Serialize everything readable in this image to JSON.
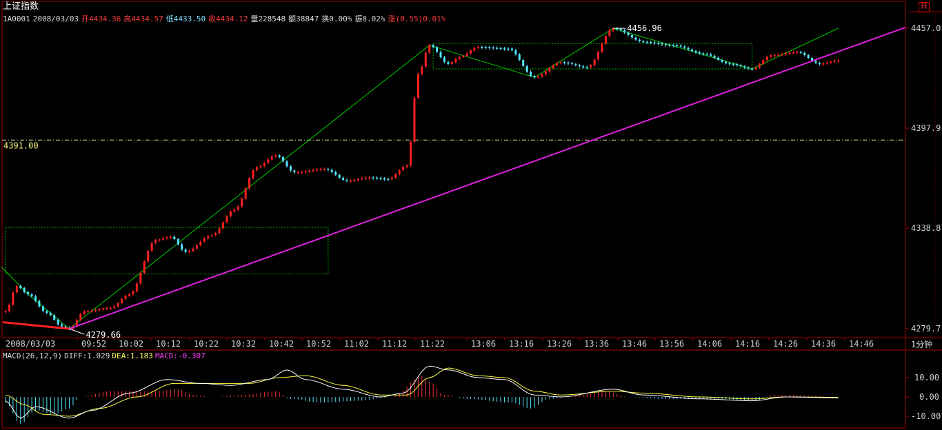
{
  "header": {
    "title": "上证指数",
    "corner_label": "日",
    "code": "1A0001",
    "date": "2008/03/03",
    "open": "开4434.36",
    "high": "高4434.57",
    "low": "低4433.50",
    "close": "收4434.12",
    "volume": "量228548",
    "amount": "额38847",
    "turnover": "换0.00%",
    "amplitude": "振0.02%",
    "change": "涨(0.55)0.01%"
  },
  "price_axis": {
    "labels": [
      "4457.0",
      "4397.9",
      "4338.8",
      "4279.7"
    ],
    "ref_line_label": "4391.00",
    "high_annotation": "4456.96",
    "low_annotation": "4279.66"
  },
  "time_axis": {
    "date_label": "2008/03/03",
    "labels": [
      "09:52",
      "10:02",
      "10:12",
      "10:22",
      "10:32",
      "10:42",
      "10:52",
      "11:02",
      "11:12",
      "11:22",
      "13:06",
      "13:16",
      "13:26",
      "13:36",
      "13:46",
      "13:56",
      "14:06",
      "14:16",
      "14:26",
      "14:36",
      "14:46"
    ],
    "period": "1分钟"
  },
  "macd": {
    "params": "MACD(26,12,9)",
    "diff": "DIFF:1.029",
    "dea": "DEA:1.183",
    "macd": "MACD:-0.307",
    "axis_labels": [
      "10.00",
      "0.00",
      "-10.00"
    ]
  },
  "colors": {
    "up": "#ff2020",
    "down": "#54e6ff",
    "trend": "#e020e0",
    "zigzag": "#00d000",
    "box": "#00c000",
    "diff": "#ffffff",
    "dea": "#ffff40"
  },
  "chart_data": {
    "type": "line",
    "title": "上证指数",
    "ylim": [
      4279.7,
      4457.0
    ],
    "reference_line": 4391.0,
    "price_anchors": [
      {
        "t": 0,
        "v": 4290
      },
      {
        "t": 3,
        "v": 4305
      },
      {
        "t": 6,
        "v": 4300
      },
      {
        "t": 11,
        "v": 4289
      },
      {
        "t": 15,
        "v": 4281
      },
      {
        "t": 17,
        "v": 4279.66
      },
      {
        "t": 21,
        "v": 4290
      },
      {
        "t": 28,
        "v": 4292
      },
      {
        "t": 33,
        "v": 4300
      },
      {
        "t": 40,
        "v": 4332
      },
      {
        "t": 44,
        "v": 4334
      },
      {
        "t": 48,
        "v": 4325
      },
      {
        "t": 55,
        "v": 4335
      },
      {
        "t": 61,
        "v": 4350
      },
      {
        "t": 67,
        "v": 4375
      },
      {
        "t": 72,
        "v": 4382
      },
      {
        "t": 77,
        "v": 4372
      },
      {
        "t": 85,
        "v": 4374
      },
      {
        "t": 91,
        "v": 4367
      },
      {
        "t": 97,
        "v": 4369
      },
      {
        "t": 102,
        "v": 4368
      },
      {
        "t": 107,
        "v": 4376
      },
      {
        "t": 110,
        "v": 4430
      },
      {
        "t": 113,
        "v": 4447
      },
      {
        "t": 118,
        "v": 4436
      },
      {
        "t": 121,
        "v": 4440
      },
      {
        "t": 126,
        "v": 4446
      },
      {
        "t": 134,
        "v": 4445
      },
      {
        "t": 141,
        "v": 4428
      },
      {
        "t": 148,
        "v": 4437
      },
      {
        "t": 155,
        "v": 4434
      },
      {
        "t": 162,
        "v": 4456.96
      },
      {
        "t": 170,
        "v": 4449
      },
      {
        "t": 178,
        "v": 4447
      },
      {
        "t": 186,
        "v": 4442
      },
      {
        "t": 193,
        "v": 4436
      },
      {
        "t": 199,
        "v": 4433
      },
      {
        "t": 204,
        "v": 4441
      },
      {
        "t": 211,
        "v": 4443
      },
      {
        "t": 217,
        "v": 4436
      },
      {
        "t": 222,
        "v": 4438
      }
    ],
    "trendline": [
      {
        "t": 17,
        "v": 4279.66
      },
      {
        "t": 222,
        "v": 4457.5
      }
    ],
    "downtrend_segment": [
      {
        "t": 0,
        "v": 4283.5
      },
      {
        "t": 17,
        "v": 4279.66
      }
    ],
    "zigzag": [
      {
        "t": -1,
        "v": 4316
      },
      {
        "t": 6,
        "v": 4300
      },
      {
        "t": 17,
        "v": 4279.66
      },
      {
        "t": 113,
        "v": 4447
      },
      {
        "t": 141,
        "v": 4428
      },
      {
        "t": 162,
        "v": 4456.96
      },
      {
        "t": 199,
        "v": 4433
      },
      {
        "t": 222,
        "v": 4457
      }
    ],
    "boxes": [
      {
        "t1": 0,
        "t2": 86,
        "v1": 4312,
        "v2": 4339.5
      },
      {
        "t1": 114,
        "t2": 199,
        "v1": 4433,
        "v2": 4448
      }
    ],
    "macd_anchors": {
      "hist": [
        {
          "t": 0,
          "v": -3
        },
        {
          "t": 4,
          "v": -14
        },
        {
          "t": 8,
          "v": -7
        },
        {
          "t": 13,
          "v": -9
        },
        {
          "t": 17,
          "v": -6
        },
        {
          "t": 20,
          "v": 0
        },
        {
          "t": 28,
          "v": 3
        },
        {
          "t": 40,
          "v": 3
        },
        {
          "t": 46,
          "v": 4
        },
        {
          "t": 50,
          "v": 1
        },
        {
          "t": 55,
          "v": 0
        },
        {
          "t": 63,
          "v": 1
        },
        {
          "t": 72,
          "v": 3
        },
        {
          "t": 76,
          "v": -1
        },
        {
          "t": 84,
          "v": -3
        },
        {
          "t": 94,
          "v": -2
        },
        {
          "t": 103,
          "v": 0
        },
        {
          "t": 111,
          "v": 11
        },
        {
          "t": 113,
          "v": 8
        },
        {
          "t": 117,
          "v": 1
        },
        {
          "t": 123,
          "v": -1
        },
        {
          "t": 135,
          "v": -3
        },
        {
          "t": 140,
          "v": -6
        },
        {
          "t": 145,
          "v": -1
        },
        {
          "t": 153,
          "v": 1
        },
        {
          "t": 160,
          "v": 3
        },
        {
          "t": 166,
          "v": 0
        },
        {
          "t": 175,
          "v": -1
        },
        {
          "t": 190,
          "v": -1
        },
        {
          "t": 200,
          "v": -2
        },
        {
          "t": 205,
          "v": 1
        },
        {
          "t": 210,
          "v": 1
        },
        {
          "t": 222,
          "v": 0
        }
      ],
      "diff": [
        {
          "t": 0,
          "v": -2
        },
        {
          "t": 4,
          "v": -11
        },
        {
          "t": 8,
          "v": -5
        },
        {
          "t": 17,
          "v": -11
        },
        {
          "t": 23,
          "v": -7
        },
        {
          "t": 33,
          "v": 2
        },
        {
          "t": 43,
          "v": 9
        },
        {
          "t": 52,
          "v": 7
        },
        {
          "t": 60,
          "v": 6
        },
        {
          "t": 70,
          "v": 9
        },
        {
          "t": 75,
          "v": 14
        },
        {
          "t": 80,
          "v": 9
        },
        {
          "t": 90,
          "v": 4
        },
        {
          "t": 100,
          "v": 0
        },
        {
          "t": 106,
          "v": 2
        },
        {
          "t": 113,
          "v": 16
        },
        {
          "t": 118,
          "v": 14
        },
        {
          "t": 126,
          "v": 10
        },
        {
          "t": 133,
          "v": 9
        },
        {
          "t": 141,
          "v": 1
        },
        {
          "t": 148,
          "v": 0
        },
        {
          "t": 162,
          "v": 4
        },
        {
          "t": 170,
          "v": 1
        },
        {
          "t": 185,
          "v": -1
        },
        {
          "t": 199,
          "v": -2
        },
        {
          "t": 208,
          "v": 0
        },
        {
          "t": 222,
          "v": -0.5
        }
      ],
      "dea": [
        {
          "t": 0,
          "v": 1
        },
        {
          "t": 5,
          "v": -4
        },
        {
          "t": 10,
          "v": -9
        },
        {
          "t": 17,
          "v": -10
        },
        {
          "t": 25,
          "v": -6
        },
        {
          "t": 35,
          "v": 0
        },
        {
          "t": 45,
          "v": 7
        },
        {
          "t": 55,
          "v": 7
        },
        {
          "t": 65,
          "v": 7
        },
        {
          "t": 73,
          "v": 10
        },
        {
          "t": 80,
          "v": 11
        },
        {
          "t": 90,
          "v": 6
        },
        {
          "t": 100,
          "v": 1
        },
        {
          "t": 107,
          "v": 1
        },
        {
          "t": 113,
          "v": 10
        },
        {
          "t": 118,
          "v": 15
        },
        {
          "t": 126,
          "v": 11
        },
        {
          "t": 133,
          "v": 10
        },
        {
          "t": 141,
          "v": 3
        },
        {
          "t": 148,
          "v": 1
        },
        {
          "t": 162,
          "v": 3
        },
        {
          "t": 170,
          "v": 2
        },
        {
          "t": 185,
          "v": 0
        },
        {
          "t": 199,
          "v": -1
        },
        {
          "t": 208,
          "v": 0
        },
        {
          "t": 222,
          "v": -0.2
        }
      ],
      "ylim": [
        -12,
        18
      ]
    }
  }
}
